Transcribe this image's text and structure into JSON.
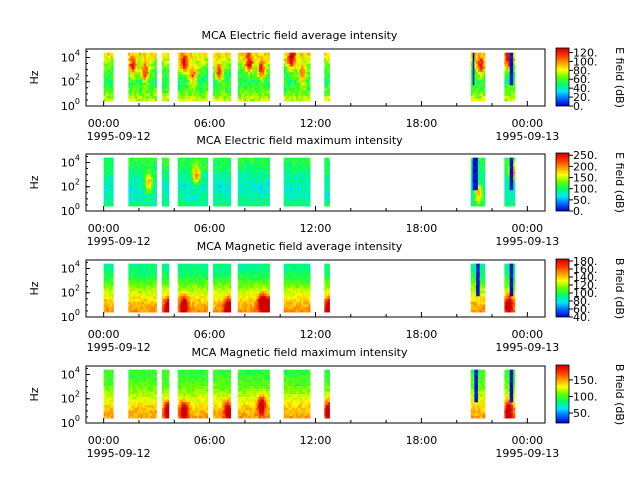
{
  "chart_data": [
    {
      "type": "heatmap",
      "title": "MCA  Electric field average intensity",
      "ylabel": "Hz",
      "colorbar_label": "E field (dB)",
      "colorbar_ticks": [
        "0.",
        "20.",
        "40.",
        "60.",
        "80.",
        "100.",
        "120."
      ],
      "colorbar_range": [
        0,
        130
      ],
      "colorbar_stops": [
        "#0000cc",
        "#0066ff",
        "#00e5ff",
        "#00ff66",
        "#66ff00",
        "#ffff00",
        "#ff9900",
        "#ff3300",
        "#cc0000"
      ],
      "ylim_exp": [
        0,
        4.7
      ],
      "y_ticks": [
        {
          "base": "10",
          "exp": "0"
        },
        {
          "base": "10",
          "exp": "2"
        },
        {
          "base": "10",
          "exp": "4"
        }
      ],
      "x_ticks": [
        "00:00",
        "06:00",
        "12:00",
        "18:00",
        "00:00"
      ],
      "date_labels": [
        "1995-09-12",
        "1995-09-13"
      ],
      "x_hours_range": [
        -1,
        25
      ],
      "segments_hours": [
        [
          0.0,
          0.55
        ],
        [
          1.4,
          3.0
        ],
        [
          3.3,
          3.7
        ],
        [
          4.2,
          5.9
        ],
        [
          6.2,
          7.2
        ],
        [
          7.6,
          9.4
        ],
        [
          10.2,
          11.7
        ],
        [
          12.5,
          12.8
        ],
        [
          20.8,
          21.6
        ],
        [
          22.7,
          23.3
        ]
      ],
      "hf_dark_segments": [
        [
          20.9,
          21.0
        ],
        [
          23.05,
          23.2
        ]
      ],
      "freq_exp_range": [
        0.4,
        4.4
      ],
      "value_levels_dB": [
        75,
        60,
        50,
        55,
        70,
        85
      ],
      "bursts": [
        [
          1.6,
          3.2
        ],
        [
          2.3,
          2.8
        ],
        [
          4.5,
          3.5
        ],
        [
          5.0,
          2.5
        ],
        [
          6.5,
          2.8
        ],
        [
          8.2,
          3.5
        ],
        [
          8.9,
          3.0
        ],
        [
          10.6,
          3.8
        ],
        [
          11.2,
          2.6
        ],
        [
          21.3,
          3.3
        ],
        [
          22.9,
          3.8
        ]
      ],
      "noise_dB": 12
    },
    {
      "type": "heatmap",
      "title": "MCA  Electric field maximum intensity",
      "ylabel": "Hz",
      "colorbar_label": "E field (dB)",
      "colorbar_ticks": [
        "0.",
        "50.",
        "100.",
        "150.",
        "200.",
        "250."
      ],
      "colorbar_range": [
        0,
        260
      ],
      "colorbar_stops": [
        "#0000cc",
        "#0066ff",
        "#00e5ff",
        "#00ff66",
        "#66ff00",
        "#ffff00",
        "#ff9900",
        "#ff3300",
        "#cc0000"
      ],
      "ylim_exp": [
        0,
        4.7
      ],
      "y_ticks": [
        {
          "base": "10",
          "exp": "0"
        },
        {
          "base": "10",
          "exp": "2"
        },
        {
          "base": "10",
          "exp": "4"
        }
      ],
      "x_ticks": [
        "00:00",
        "06:00",
        "12:00",
        "18:00",
        "00:00"
      ],
      "date_labels": [
        "1995-09-12",
        "1995-09-13"
      ],
      "x_hours_range": [
        -1,
        25
      ],
      "segments_hours": [
        [
          0.0,
          0.55
        ],
        [
          1.4,
          3.0
        ],
        [
          3.3,
          3.7
        ],
        [
          4.2,
          5.9
        ],
        [
          6.2,
          7.2
        ],
        [
          7.6,
          9.4
        ],
        [
          10.2,
          11.7
        ],
        [
          12.5,
          12.8
        ],
        [
          20.8,
          21.6
        ],
        [
          22.7,
          23.3
        ]
      ],
      "hf_dark_segments": [
        [
          20.9,
          21.15
        ],
        [
          23.0,
          23.15
        ]
      ],
      "freq_exp_range": [
        0.4,
        4.4
      ],
      "value_levels_dB": [
        95,
        80,
        75,
        85,
        100,
        110
      ],
      "bursts": [
        [
          2.5,
          2.4
        ],
        [
          5.2,
          3.0
        ],
        [
          21.2,
          1.5
        ],
        [
          23.1,
          3.2
        ]
      ],
      "noise_dB": 18
    },
    {
      "type": "heatmap",
      "title": "MCA  Magnetic field average intensity",
      "ylabel": "Hz",
      "colorbar_label": "B field (dB)",
      "colorbar_ticks": [
        "40.",
        "60.",
        "80.",
        "100.",
        "120.",
        "140.",
        "160.",
        "180."
      ],
      "colorbar_range": [
        40,
        185
      ],
      "colorbar_stops": [
        "#0000cc",
        "#0066ff",
        "#00e5ff",
        "#00ff66",
        "#66ff00",
        "#ffff00",
        "#ff9900",
        "#ff3300",
        "#cc0000"
      ],
      "ylim_exp": [
        0,
        4.7
      ],
      "y_ticks": [
        {
          "base": "10",
          "exp": "0"
        },
        {
          "base": "10",
          "exp": "2"
        },
        {
          "base": "10",
          "exp": "4"
        }
      ],
      "x_ticks": [
        "00:00",
        "06:00",
        "12:00",
        "18:00",
        "00:00"
      ],
      "date_labels": [
        "1995-09-12",
        "1995-09-13"
      ],
      "x_hours_range": [
        -1,
        25
      ],
      "segments_hours": [
        [
          0.0,
          0.55
        ],
        [
          1.4,
          3.0
        ],
        [
          3.3,
          3.7
        ],
        [
          4.2,
          5.9
        ],
        [
          6.2,
          7.2
        ],
        [
          7.6,
          9.4
        ],
        [
          10.2,
          11.7
        ],
        [
          12.5,
          12.8
        ],
        [
          20.8,
          21.6
        ],
        [
          22.7,
          23.3
        ]
      ],
      "hf_dark_segments": [
        [
          21.1,
          21.3
        ],
        [
          23.0,
          23.15
        ]
      ],
      "freq_exp_range": [
        0.4,
        4.4
      ],
      "value_levels_dB": [
        150,
        140,
        125,
        110,
        95,
        90
      ],
      "bursts": [
        [
          3.6,
          0.8
        ],
        [
          4.5,
          1.0
        ],
        [
          7.0,
          0.8
        ],
        [
          8.9,
          1.2
        ],
        [
          9.2,
          1.0
        ],
        [
          12.7,
          0.8
        ],
        [
          22.9,
          1.0
        ]
      ],
      "noise_dB": 8
    },
    {
      "type": "heatmap",
      "title": "MCA  Magnetic field maximum intensity",
      "ylabel": "Hz",
      "colorbar_label": "B field (dB)",
      "colorbar_ticks": [
        "50.",
        "100.",
        "150."
      ],
      "colorbar_range": [
        20,
        195
      ],
      "colorbar_stops": [
        "#0000cc",
        "#0066ff",
        "#00e5ff",
        "#00ff66",
        "#66ff00",
        "#ffff00",
        "#ff9900",
        "#ff3300",
        "#cc0000"
      ],
      "ylim_exp": [
        0,
        4.7
      ],
      "y_ticks": [
        {
          "base": "10",
          "exp": "0"
        },
        {
          "base": "10",
          "exp": "2"
        },
        {
          "base": "10",
          "exp": "4"
        }
      ],
      "x_ticks": [
        "00:00",
        "06:00",
        "12:00",
        "18:00",
        "00:00"
      ],
      "date_labels": [
        "1995-09-12",
        "1995-09-13"
      ],
      "x_hours_range": [
        -1,
        25
      ],
      "segments_hours": [
        [
          0.0,
          0.55
        ],
        [
          1.4,
          3.0
        ],
        [
          3.3,
          3.7
        ],
        [
          4.2,
          5.9
        ],
        [
          6.2,
          7.2
        ],
        [
          7.6,
          9.4
        ],
        [
          10.2,
          11.7
        ],
        [
          12.5,
          12.8
        ],
        [
          20.8,
          21.6
        ],
        [
          22.7,
          23.3
        ]
      ],
      "hf_dark_segments": [
        [
          21.0,
          21.2
        ],
        [
          23.05,
          23.2
        ]
      ],
      "freq_exp_range": [
        0.4,
        4.4
      ],
      "value_levels_dB": [
        150,
        140,
        125,
        110,
        100,
        95
      ],
      "bursts": [
        [
          3.6,
          1.0
        ],
        [
          4.5,
          1.0
        ],
        [
          7.0,
          1.0
        ],
        [
          8.9,
          1.5
        ],
        [
          12.7,
          1.0
        ],
        [
          22.9,
          1.0
        ]
      ],
      "noise_dB": 10
    }
  ]
}
